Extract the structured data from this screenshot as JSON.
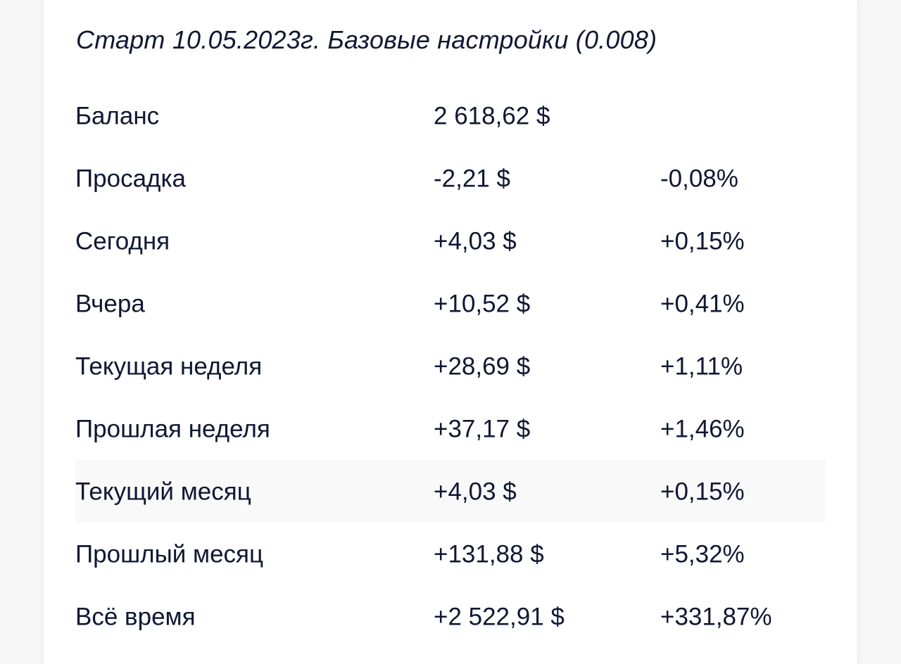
{
  "title": "Старт 10.05.2023г. Базовые настройки (0.008)",
  "rows": [
    {
      "label": "Баланс",
      "amount": "2 618,62 $",
      "percent": "",
      "highlight": false
    },
    {
      "label": "Просадка",
      "amount": "-2,21 $",
      "percent": "-0,08%",
      "highlight": false
    },
    {
      "label": "Сегодня",
      "amount": "+4,03 $",
      "percent": "+0,15%",
      "highlight": false
    },
    {
      "label": "Вчера",
      "amount": "+10,52 $",
      "percent": "+0,41%",
      "highlight": false
    },
    {
      "label": "Текущая неделя",
      "amount": "+28,69 $",
      "percent": "+1,11%",
      "highlight": false
    },
    {
      "label": "Прошлая неделя",
      "amount": "+37,17 $",
      "percent": "+1,46%",
      "highlight": false
    },
    {
      "label": "Текущий месяц",
      "amount": "+4,03 $",
      "percent": "+0,15%",
      "highlight": true
    },
    {
      "label": "Прошлый месяц",
      "amount": "+131,88 $",
      "percent": "+5,32%",
      "highlight": false
    },
    {
      "label": "Всё время",
      "amount": "+2 522,91 $",
      "percent": "+331,87%",
      "highlight": false
    }
  ],
  "colors": {
    "text": "#0f1733",
    "card_background": "#ffffff",
    "page_background": "#f6f6f7",
    "row_highlight": "#f9f9fa"
  }
}
